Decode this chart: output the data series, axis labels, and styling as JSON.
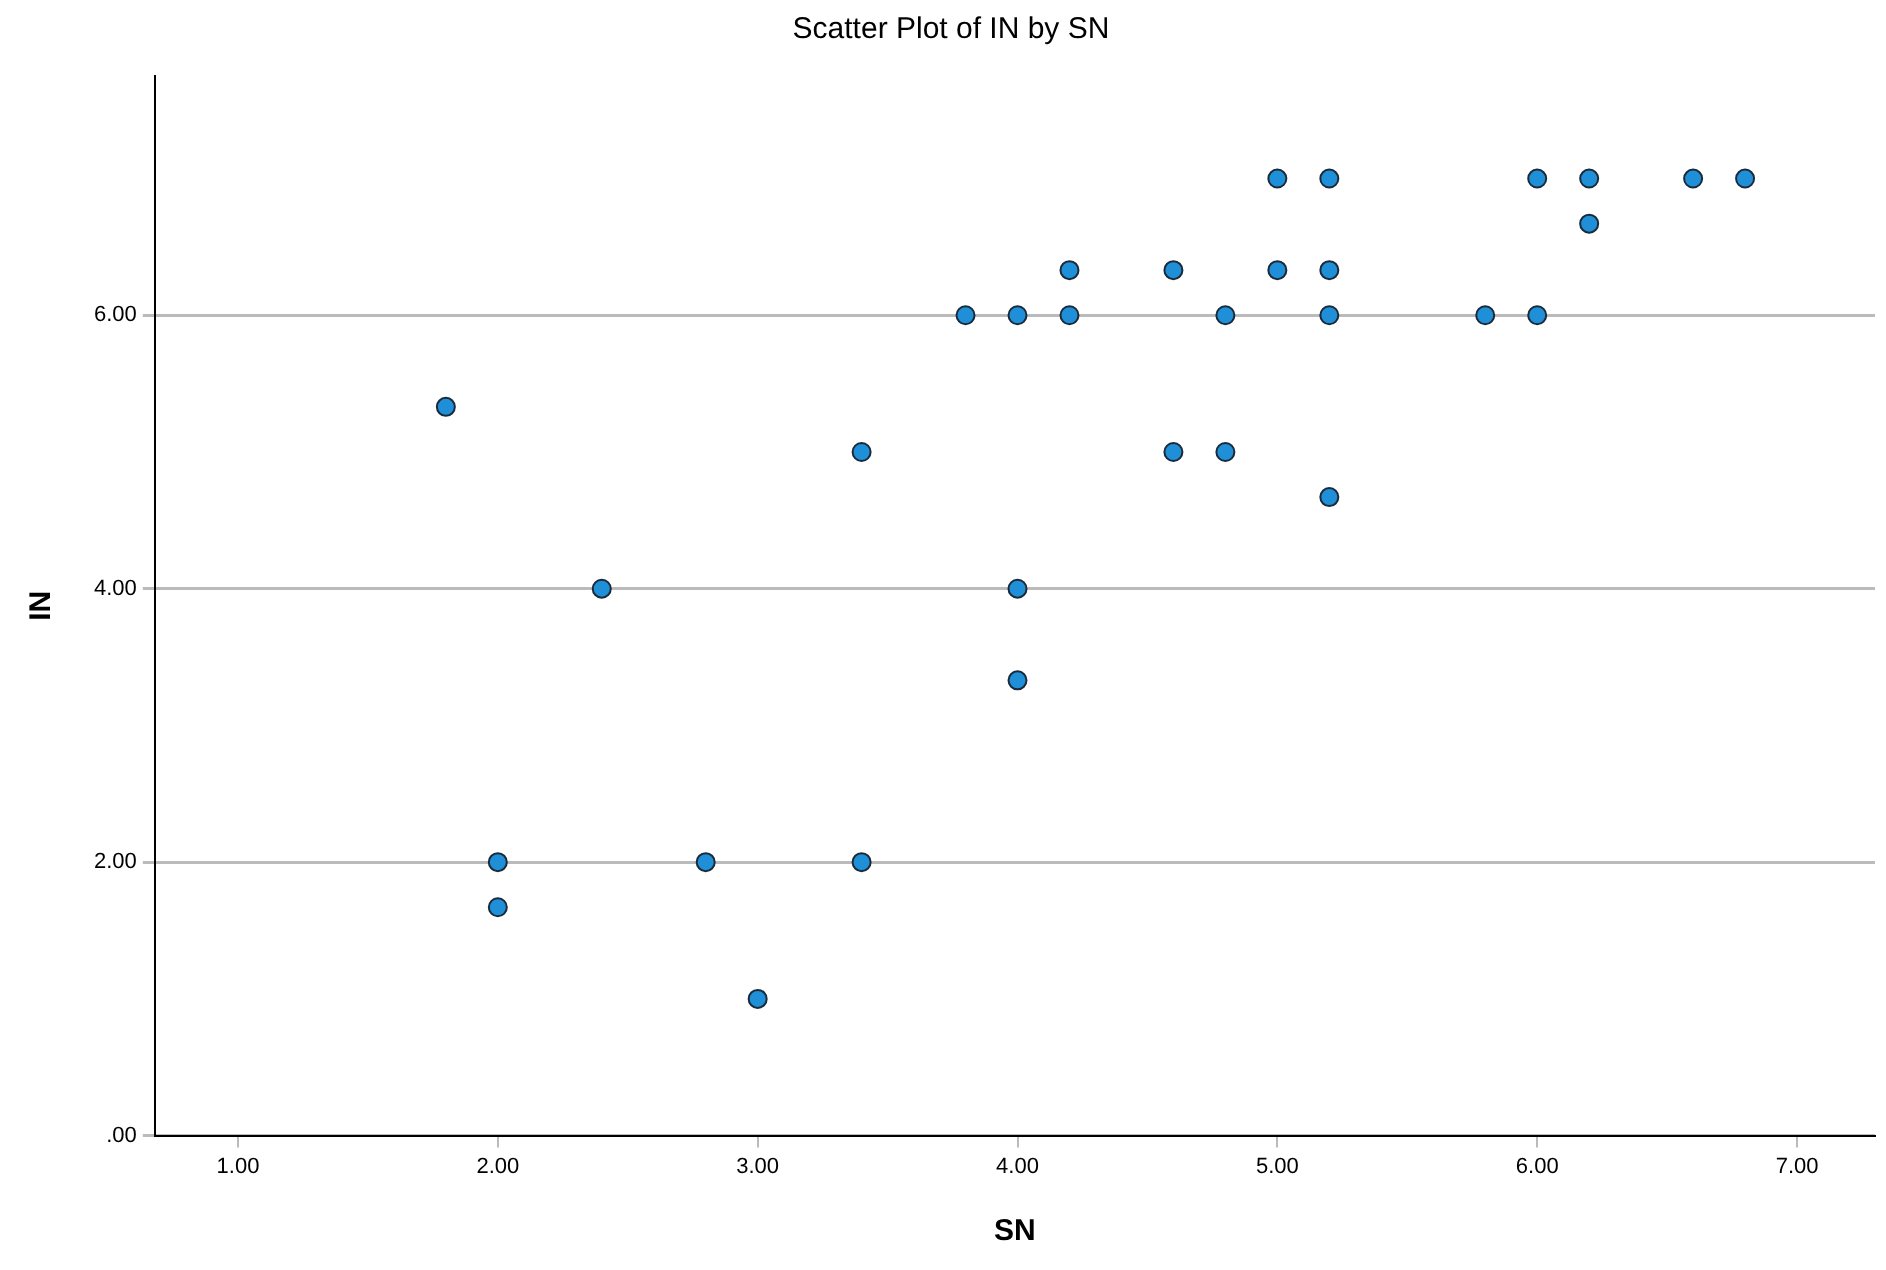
{
  "chart_data": {
    "type": "scatter",
    "title": "Scatter Plot of IN by SN",
    "xlabel": "SN",
    "ylabel": "IN",
    "x": [
      1.8,
      2.0,
      2.0,
      2.4,
      2.8,
      3.0,
      3.4,
      3.4,
      3.8,
      4.0,
      4.0,
      4.0,
      4.2,
      4.2,
      4.6,
      4.6,
      4.8,
      4.8,
      5.0,
      5.0,
      5.2,
      5.2,
      5.2,
      5.2,
      5.8,
      6.0,
      6.0,
      6.2,
      6.2,
      6.6,
      6.8
    ],
    "values": [
      5.33,
      2.0,
      1.67,
      4.0,
      2.0,
      1.0,
      5.0,
      2.0,
      6.0,
      6.0,
      4.0,
      3.33,
      6.33,
      6.0,
      6.33,
      5.0,
      6.0,
      5.0,
      7.0,
      6.33,
      7.0,
      6.33,
      6.0,
      4.67,
      6.0,
      7.0,
      6.0,
      7.0,
      6.67,
      7.0,
      7.0
    ],
    "color": "#1f8fd8",
    "marker": "circle",
    "grid": "y",
    "legend": false,
    "xlim": [
      0.68,
      7.3
    ],
    "ylim": [
      0,
      7.75
    ],
    "xticks": [
      {
        "value": 1,
        "label": "1.00"
      },
      {
        "value": 2,
        "label": "2.00"
      },
      {
        "value": 3,
        "label": "3.00"
      },
      {
        "value": 4,
        "label": "4.00"
      },
      {
        "value": 5,
        "label": "5.00"
      },
      {
        "value": 6,
        "label": "6.00"
      },
      {
        "value": 7,
        "label": "7.00"
      }
    ],
    "yticks": [
      {
        "value": 0,
        "label": ".00"
      },
      {
        "value": 2,
        "label": "2.00"
      },
      {
        "value": 4,
        "label": "4.00"
      },
      {
        "value": 6,
        "label": "6.00"
      }
    ]
  }
}
